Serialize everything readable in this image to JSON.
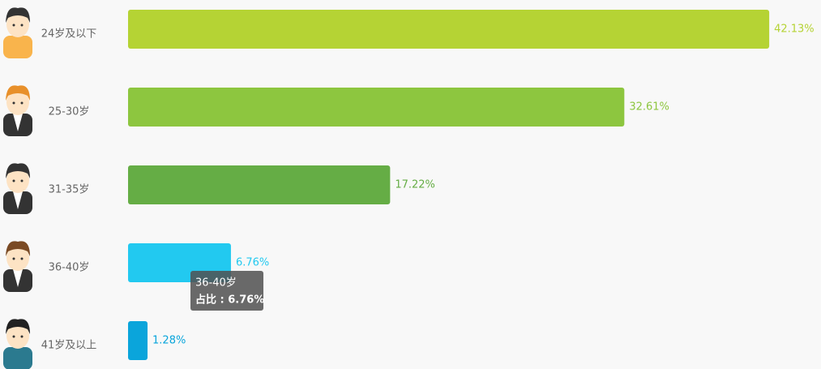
{
  "chart_data": {
    "type": "hbar",
    "categories": [
      "24岁及以下",
      "25-30岁",
      "31-35岁",
      "36-40岁",
      "41岁及以上"
    ],
    "values": [
      42.13,
      32.61,
      17.22,
      6.76,
      1.28
    ],
    "value_labels": [
      "42.13%",
      "32.61%",
      "17.22%",
      "6.76%",
      "1.28%"
    ],
    "colors": [
      "#b5d334",
      "#8dc63f",
      "#65ad45",
      "#22c9f0",
      "#0aa5db"
    ],
    "xlim": [
      0,
      45
    ],
    "tooltip": {
      "title": "36-40岁",
      "text": "占比 : 6.76%"
    }
  }
}
